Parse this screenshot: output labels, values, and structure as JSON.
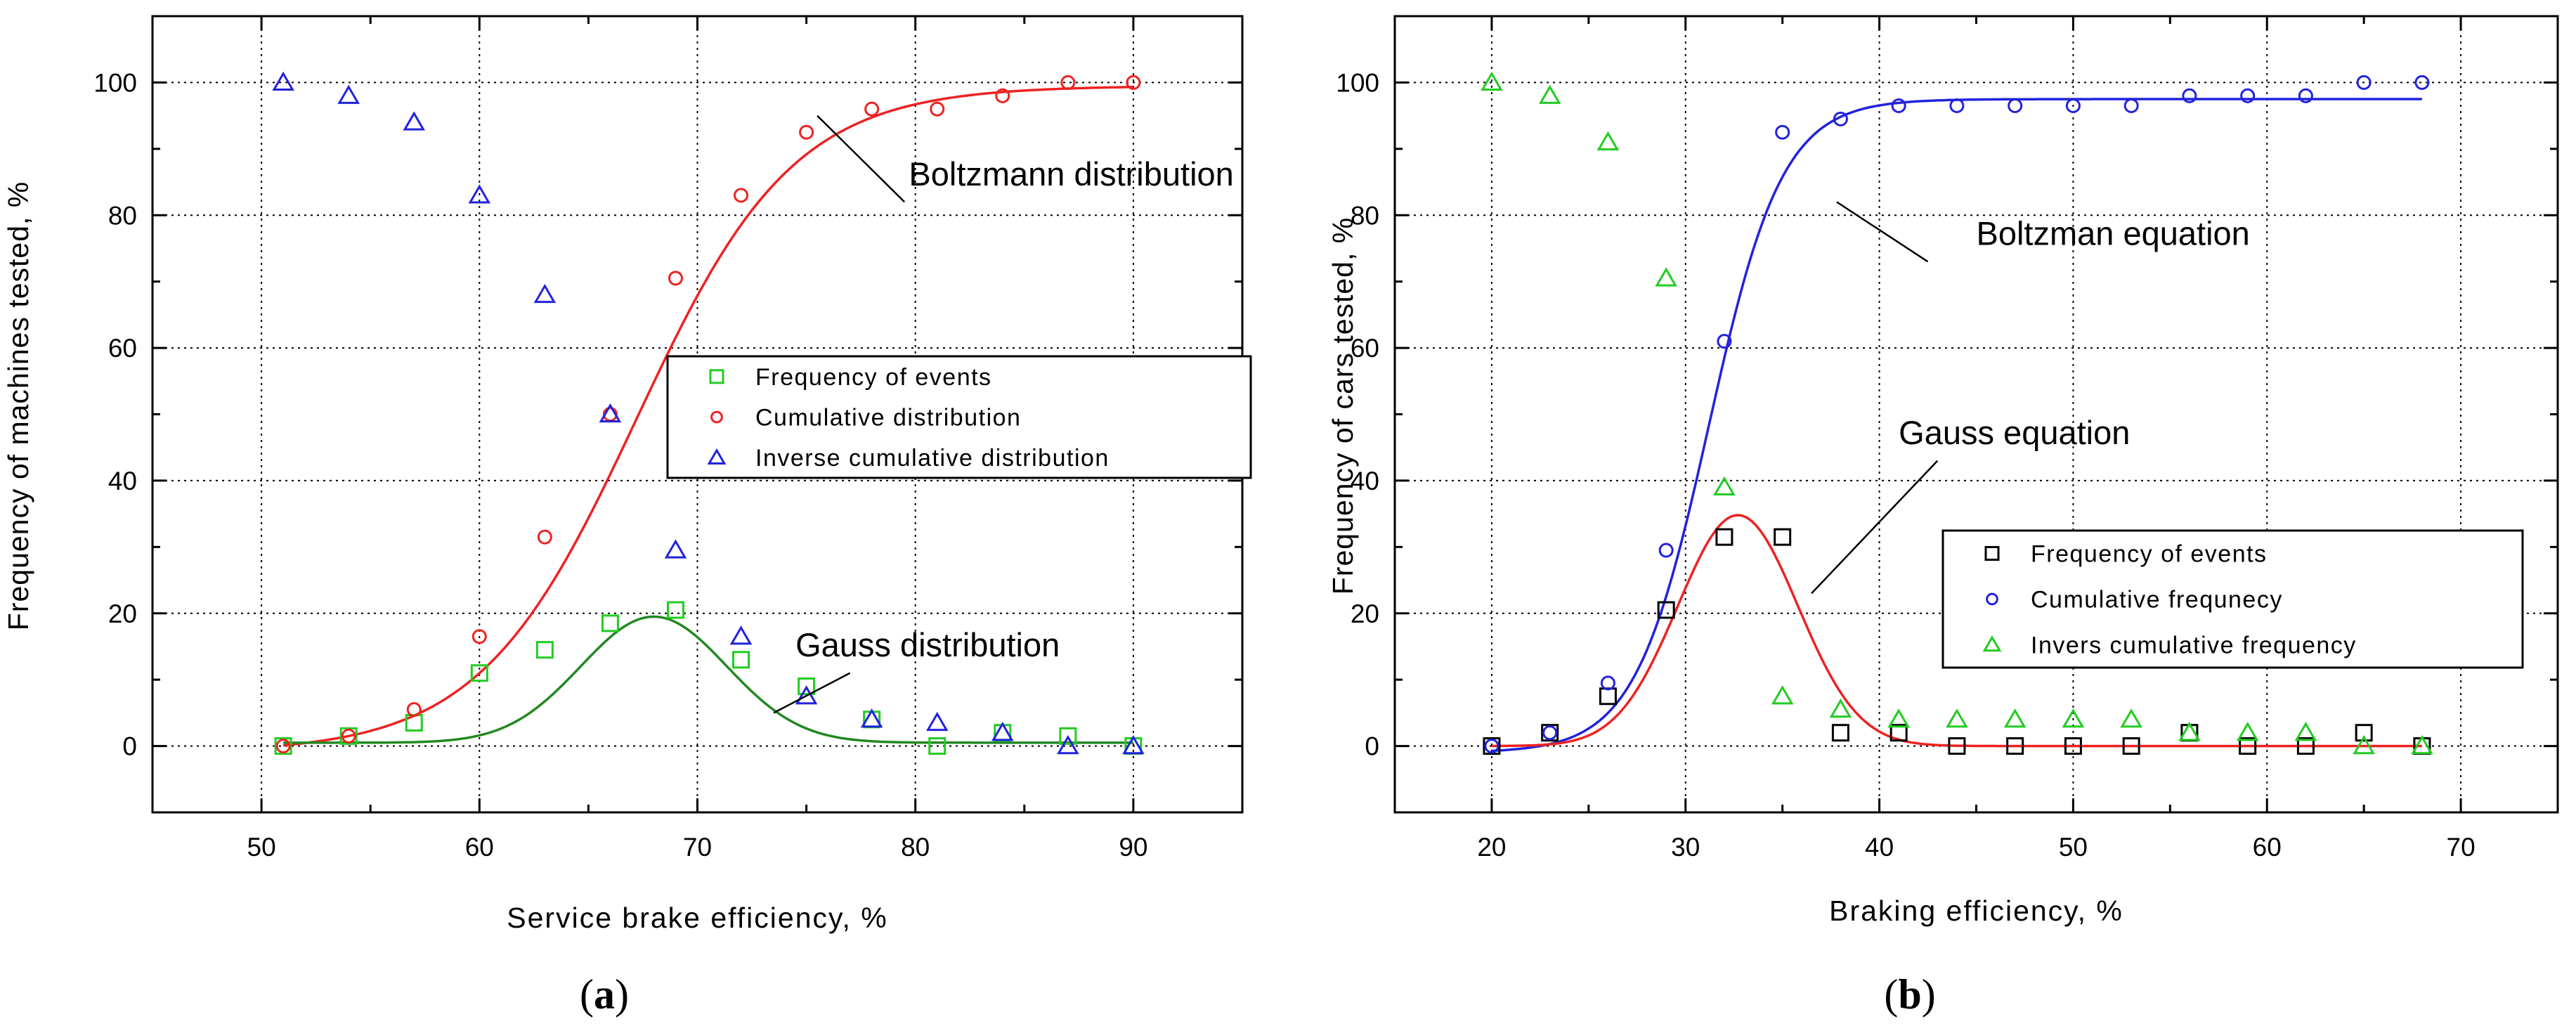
{
  "chart_data": [
    {
      "type": "scatter",
      "panel_label": "a",
      "xlabel": "Service brake efficiency, %",
      "ylabel": "Frequency of machines tested, %",
      "xlim": [
        45,
        95
      ],
      "ylim": [
        -10,
        110
      ],
      "xticks": [
        50,
        60,
        70,
        80,
        90
      ],
      "yticks": [
        0,
        20,
        40,
        60,
        80,
        100
      ],
      "grid": true,
      "legend_position": "center-right",
      "series": [
        {
          "name": "Frequency of events",
          "marker": "square",
          "color": "#22cc22",
          "x": [
            51,
            54,
            57,
            60,
            63,
            66,
            69,
            72,
            75,
            78,
            81,
            84,
            87,
            90
          ],
          "y": [
            0,
            1.5,
            3.5,
            11,
            14.5,
            18.5,
            20.5,
            13,
            9,
            4,
            0,
            2,
            1.5,
            0
          ]
        },
        {
          "name": "Cumulative distribution",
          "marker": "circle",
          "color": "#ee2222",
          "x": [
            51,
            54,
            57,
            60,
            63,
            66,
            69,
            72,
            75,
            78,
            81,
            84,
            87,
            90
          ],
          "y": [
            0,
            1.5,
            5.5,
            16.5,
            31.5,
            50,
            70.5,
            83,
            92.5,
            96,
            96,
            98,
            100,
            100
          ]
        },
        {
          "name": "Inverse cumulative distribution",
          "marker": "triangle",
          "color": "#2222dd",
          "x": [
            51,
            54,
            57,
            60,
            63,
            66,
            69,
            72,
            75,
            78,
            81,
            84,
            87,
            90
          ],
          "y": [
            100,
            98,
            94,
            83,
            68,
            50,
            29.5,
            16.5,
            7.5,
            4,
            3.5,
            2,
            0,
            0
          ]
        }
      ],
      "fits": [
        {
          "name": "Boltzmann distribution",
          "kind": "boltzmann",
          "color": "#ee2222",
          "params": {
            "A1": -1,
            "A2": 99.5,
            "x0": 67.2,
            "dx": 3.6
          },
          "range": [
            51,
            90
          ]
        },
        {
          "name": "Gauss distribution",
          "kind": "gauss",
          "color": "#228822",
          "params": {
            "y0": 0.5,
            "A": 19,
            "xc": 68,
            "w": 6.7
          },
          "range": [
            51,
            90
          ]
        }
      ],
      "annotations": [
        {
          "text": "Boltzmann distribution",
          "label_at": [
            79.7,
            84.5
          ],
          "line_from": [
            79.5,
            82
          ],
          "line_to": [
            75.5,
            95
          ]
        },
        {
          "text": "Gauss distribution",
          "label_at": [
            74.5,
            13.5
          ],
          "line_from": [
            77,
            11
          ],
          "line_to": [
            73.5,
            5
          ]
        }
      ]
    },
    {
      "type": "scatter",
      "panel_label": "b",
      "xlabel": "Braking efficiency, %",
      "ylabel": "Frequency of cars tested, %",
      "xlim": [
        15,
        75
      ],
      "ylim": [
        -10,
        110
      ],
      "xticks": [
        20,
        30,
        40,
        50,
        60,
        70
      ],
      "yticks": [
        0,
        20,
        40,
        60,
        80,
        100
      ],
      "grid": true,
      "legend_position": "center-right",
      "series": [
        {
          "name": "Frequency of events",
          "marker": "square",
          "color": "#000000",
          "x": [
            20,
            23,
            26,
            29,
            32,
            35,
            38,
            41,
            44,
            47,
            50,
            53,
            56,
            59,
            62,
            65,
            68
          ],
          "y": [
            0,
            2,
            7.5,
            20.5,
            31.5,
            31.5,
            2,
            2,
            0,
            0,
            0,
            0,
            2,
            0,
            0,
            2,
            0
          ]
        },
        {
          "name": "Cumulative frequnecy",
          "marker": "circle",
          "color": "#2222dd",
          "x": [
            20,
            23,
            26,
            29,
            32,
            35,
            38,
            41,
            44,
            47,
            50,
            53,
            56,
            59,
            62,
            65,
            68
          ],
          "y": [
            0,
            2,
            9.5,
            29.5,
            61,
            92.5,
            94.5,
            96.5,
            96.5,
            96.5,
            96.5,
            96.5,
            98,
            98,
            98,
            100,
            100
          ]
        },
        {
          "name": "Invers cumulative frequency",
          "marker": "triangle",
          "color": "#22cc22",
          "x": [
            20,
            23,
            26,
            29,
            32,
            35,
            38,
            41,
            44,
            47,
            50,
            53,
            56,
            59,
            62,
            65,
            68
          ],
          "y": [
            100,
            98,
            91,
            70.5,
            39,
            7.5,
            5.5,
            4,
            4,
            4,
            4,
            4,
            2,
            2,
            2,
            0,
            0
          ]
        }
      ],
      "fits": [
        {
          "name": "Boltzman equation",
          "kind": "boltzmann",
          "color": "#2222dd",
          "params": {
            "A1": -1,
            "A2": 97.5,
            "x0": 31.2,
            "dx": 1.9
          },
          "range": [
            20,
            68
          ]
        },
        {
          "name": "Gauss equation",
          "kind": "gauss",
          "color": "#ee2222",
          "params": {
            "y0": 0,
            "A": 34.8,
            "xc": 32.7,
            "w": 6.2
          },
          "range": [
            20,
            68
          ]
        }
      ],
      "annotations": [
        {
          "text": "Boltzman equation",
          "label_at": [
            45,
            75.5
          ],
          "line_from": [
            42.5,
            73
          ],
          "line_to": [
            37.8,
            82
          ]
        },
        {
          "text": "Gauss equation",
          "label_at": [
            41,
            45.5
          ],
          "line_from": [
            43,
            43
          ],
          "line_to": [
            36.5,
            23
          ]
        }
      ]
    }
  ]
}
